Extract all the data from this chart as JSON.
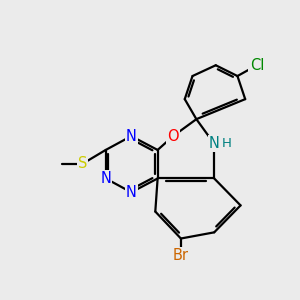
{
  "background_color": "#ebebeb",
  "colors": {
    "N": "#0000ff",
    "O": "#ff0000",
    "S": "#cccc00",
    "Br": "#cc6600",
    "Cl": "#008800",
    "NH": "#008080",
    "bond": "#000000"
  },
  "lw": 1.6,
  "fs": 10.5
}
